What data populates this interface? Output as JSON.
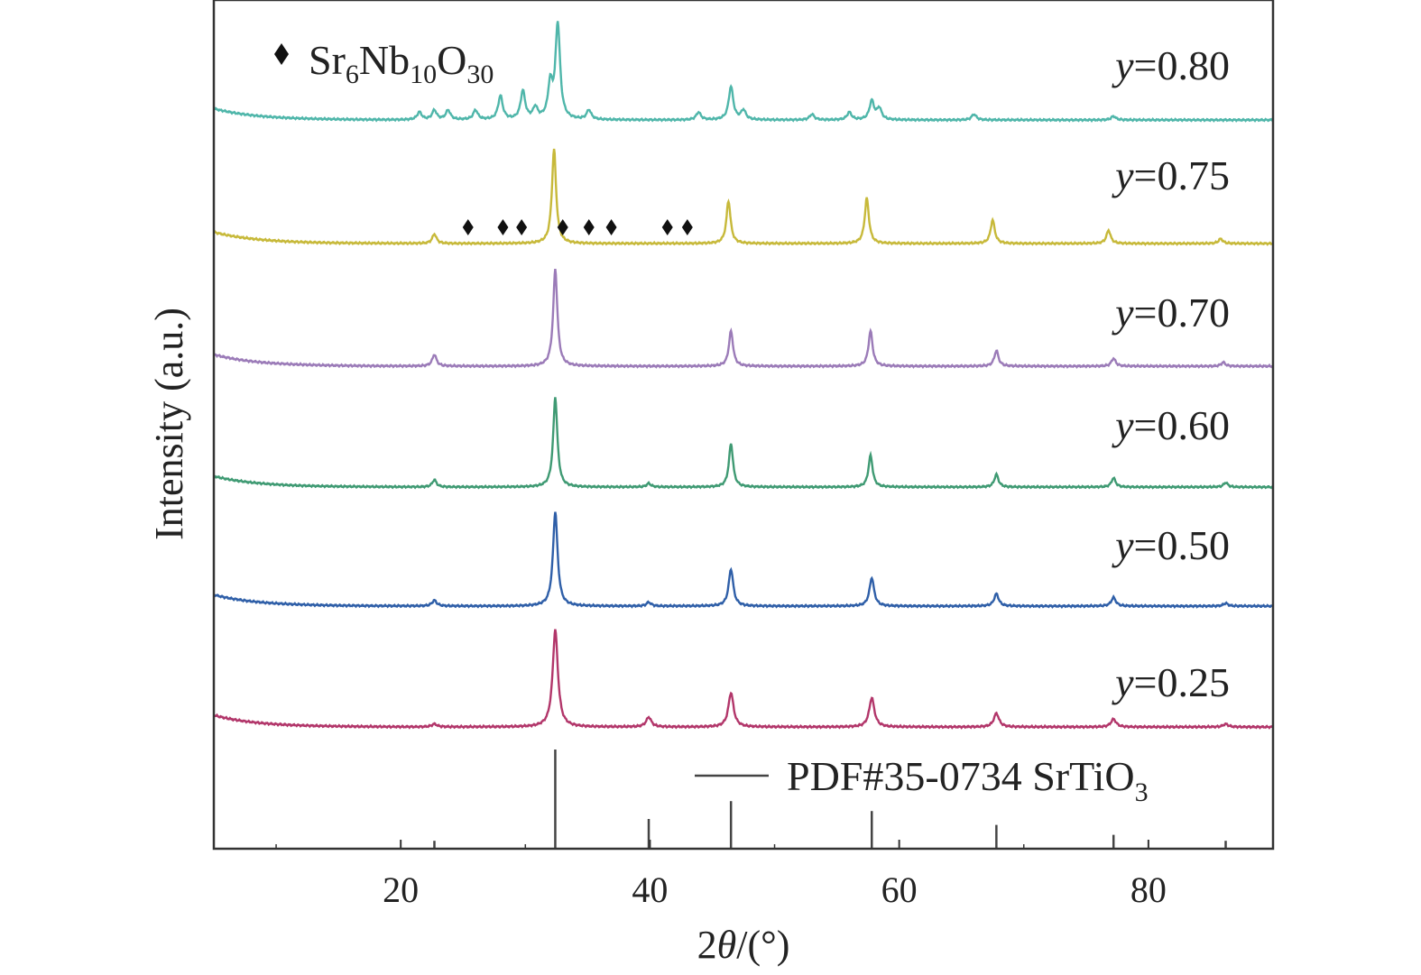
{
  "chart_data": {
    "type": "line",
    "xlabel_prefix": "2",
    "xlabel_symbol": "θ",
    "xlabel_suffix": "/(°)",
    "ylabel": "Intensity (a.u.)",
    "xlim": [
      5,
      90
    ],
    "x_ticks": [
      20,
      40,
      60,
      80
    ],
    "grid": false,
    "legend": {
      "marker_label": {
        "base": "Sr",
        "sub1": "6",
        "mid": "Nb",
        "sub2": "10",
        "end": "O",
        "sub3": "30"
      },
      "reference_label": {
        "main": "PDF#35-0734 SrTiO",
        "sub": "3"
      }
    },
    "reference_pattern": {
      "name": "PDF#35-0734 SrTiO3",
      "color": "#444444",
      "peaks": [
        {
          "x": 22.7,
          "rel": 0.08
        },
        {
          "x": 32.4,
          "rel": 1.0
        },
        {
          "x": 39.9,
          "rel": 0.3
        },
        {
          "x": 46.5,
          "rel": 0.48
        },
        {
          "x": 57.8,
          "rel": 0.38
        },
        {
          "x": 67.8,
          "rel": 0.24
        },
        {
          "x": 77.2,
          "rel": 0.14
        },
        {
          "x": 86.2,
          "rel": 0.08
        }
      ]
    },
    "series": [
      {
        "y_prefix": "y",
        "y_value": "=0.80",
        "color": "#4fb6aa",
        "peaks": [
          [
            21.5,
            0.08
          ],
          [
            22.7,
            0.1
          ],
          [
            23.8,
            0.1
          ],
          [
            26.0,
            0.1
          ],
          [
            28.0,
            0.25
          ],
          [
            29.8,
            0.3
          ],
          [
            30.8,
            0.12
          ],
          [
            32.0,
            0.35
          ],
          [
            32.6,
            1.0
          ],
          [
            35.1,
            0.1
          ],
          [
            43.9,
            0.08
          ],
          [
            46.5,
            0.35
          ],
          [
            47.5,
            0.1
          ],
          [
            53.0,
            0.06
          ],
          [
            56.0,
            0.08
          ],
          [
            57.8,
            0.2
          ],
          [
            58.4,
            0.12
          ],
          [
            66.0,
            0.06
          ],
          [
            77.2,
            0.04
          ]
        ]
      },
      {
        "y_prefix": "y",
        "y_value": "=0.75",
        "color": "#c7b93a",
        "peaks": [
          [
            22.7,
            0.1
          ],
          [
            32.3,
            1.0
          ],
          [
            46.3,
            0.45
          ],
          [
            57.4,
            0.48
          ],
          [
            67.5,
            0.25
          ],
          [
            76.8,
            0.14
          ],
          [
            85.8,
            0.05
          ]
        ]
      },
      {
        "y_prefix": "y",
        "y_value": "=0.70",
        "color": "#9b7bb8",
        "peaks": [
          [
            22.7,
            0.12
          ],
          [
            32.4,
            1.0
          ],
          [
            46.5,
            0.36
          ],
          [
            57.7,
            0.36
          ],
          [
            67.8,
            0.16
          ],
          [
            77.2,
            0.08
          ],
          [
            86.0,
            0.04
          ]
        ]
      },
      {
        "y_prefix": "y",
        "y_value": "=0.60",
        "color": "#3f9a73",
        "peaks": [
          [
            22.7,
            0.08
          ],
          [
            32.4,
            1.0
          ],
          [
            39.9,
            0.04
          ],
          [
            46.5,
            0.48
          ],
          [
            57.7,
            0.35
          ],
          [
            67.8,
            0.14
          ],
          [
            77.2,
            0.1
          ],
          [
            86.2,
            0.05
          ]
        ]
      },
      {
        "y_prefix": "y",
        "y_value": "=0.50",
        "color": "#2f5fa8",
        "peaks": [
          [
            22.7,
            0.06
          ],
          [
            32.4,
            1.0
          ],
          [
            39.9,
            0.04
          ],
          [
            46.5,
            0.39
          ],
          [
            57.8,
            0.3
          ],
          [
            67.8,
            0.13
          ],
          [
            77.2,
            0.09
          ],
          [
            86.2,
            0.03
          ]
        ]
      },
      {
        "y_prefix": "y",
        "y_value": "=0.25",
        "color": "#b2366a",
        "peaks": [
          [
            22.7,
            0.03
          ],
          [
            32.4,
            1.0
          ],
          [
            39.9,
            0.1
          ],
          [
            46.5,
            0.35
          ],
          [
            57.8,
            0.3
          ],
          [
            67.8,
            0.14
          ],
          [
            77.2,
            0.08
          ],
          [
            86.2,
            0.03
          ]
        ]
      }
    ],
    "impurity_markers": {
      "series": "y=0.75",
      "x": [
        25.4,
        28.2,
        29.7,
        33.0,
        35.1,
        36.9,
        41.4,
        43.0
      ]
    }
  }
}
